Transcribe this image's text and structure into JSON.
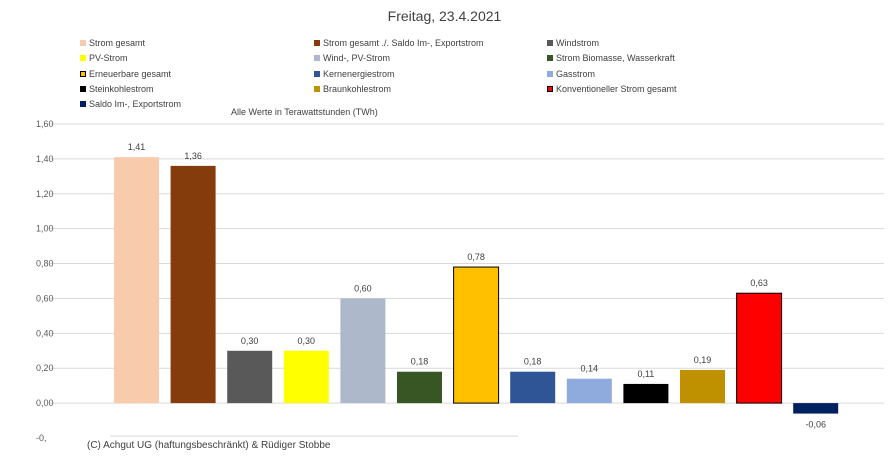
{
  "chart_data": {
    "type": "bar",
    "title": "Freitag, 23.4.2021",
    "note": "Alle Werte in Terawattstunden (TWh)",
    "footer": "(C) Achgut UG (haftungsbeschränkt) & Rüdiger Stobbe",
    "ylim": [
      -0.2,
      1.6
    ],
    "yticks": [
      "1,60",
      "1,40",
      "1,20",
      "1,00",
      "0,80",
      "0,60",
      "0,40",
      "0,20",
      "0,00",
      "-0,"
    ],
    "grid": "horizontal",
    "legend_position": "top",
    "series": [
      {
        "name": "Strom gesamt",
        "value": 1.41,
        "label": "1,41",
        "color": "#f8cbad"
      },
      {
        "name": "Strom gesamt ./. Saldo Im-, Exportstrom",
        "value": 1.36,
        "label": "1,36",
        "color": "#843c0c"
      },
      {
        "name": "Windstrom",
        "value": 0.3,
        "label": "0,30",
        "color": "#595959"
      },
      {
        "name": "PV-Strom",
        "value": 0.3,
        "label": "0,30",
        "color": "#ffff00"
      },
      {
        "name": "Wind-, PV-Strom",
        "value": 0.6,
        "label": "0,60",
        "color": "#adb9ca"
      },
      {
        "name": "Strom Biomasse, Wasserkraft",
        "value": 0.18,
        "label": "0,18",
        "color": "#375623"
      },
      {
        "name": "Erneuerbare gesamt",
        "value": 0.78,
        "label": "0,78",
        "color": "#ffc000",
        "border": "#000000"
      },
      {
        "name": "Kernenergiestrom",
        "value": 0.18,
        "label": "0,18",
        "color": "#2f5597"
      },
      {
        "name": "Gasstrom",
        "value": 0.14,
        "label": "0,14",
        "color": "#8faadc"
      },
      {
        "name": "Steinkohlestrom",
        "value": 0.11,
        "label": "0,11",
        "color": "#000000"
      },
      {
        "name": "Braunkohlestrom",
        "value": 0.19,
        "label": "0,19",
        "color": "#bf9000"
      },
      {
        "name": "Konventioneller Strom gesamt",
        "value": 0.63,
        "label": "0,63",
        "color": "#ff0000",
        "border": "#000000"
      },
      {
        "name": "Saldo Im-, Exportstrom",
        "value": -0.06,
        "label": "-0,06",
        "color": "#002060"
      }
    ]
  }
}
